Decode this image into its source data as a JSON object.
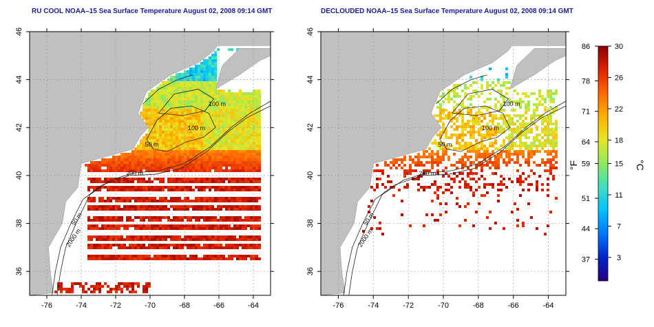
{
  "chart_data": [
    {
      "type": "heatmap",
      "title": "RU COOL NOAA–15 Sea Surface Temperature August 02, 2008 09:14 GMT",
      "xlabel": "",
      "ylabel": "",
      "xlim": [
        -77,
        -63
      ],
      "ylim": [
        35,
        46
      ],
      "x_ticks": [
        -76,
        -74,
        -72,
        -70,
        -68,
        -66,
        -64
      ],
      "y_ticks": [
        36,
        38,
        40,
        42,
        44,
        46
      ],
      "x_tick_labels": [
        "-76",
        "-74",
        "-72",
        "-70",
        "-68",
        "-66",
        "-64"
      ],
      "y_tick_labels": [
        "36",
        "38",
        "40",
        "42",
        "44",
        "46"
      ],
      "grid": true,
      "contour_labels": [
        "100 m",
        "100 m",
        "50 m",
        "200 m",
        "50 m",
        "2000 m"
      ],
      "land_color": "#c0c0c0",
      "note_colors": {
        "warm": "#cc1a0d",
        "mid": "#f0d61e",
        "cool": "#2ec8e0"
      }
    },
    {
      "type": "heatmap",
      "title": "DECLOUDED NOAA–15 Sea Surface Temperature August 02, 2008 09:14 GMT",
      "xlabel": "",
      "ylabel": "",
      "xlim": [
        -77,
        -63
      ],
      "ylim": [
        35,
        46
      ],
      "x_ticks": [
        -76,
        -74,
        -72,
        -70,
        -68,
        -66,
        -64
      ],
      "y_ticks": [
        36,
        38,
        40,
        42,
        44,
        46
      ],
      "x_tick_labels": [
        "-76",
        "-74",
        "-72",
        "-70",
        "-68",
        "-66",
        "-64"
      ],
      "y_tick_labels": [
        "36",
        "38",
        "40",
        "42",
        "44",
        "46"
      ],
      "grid": true,
      "contour_labels": [
        "100 m",
        "100 m",
        "50 m",
        "200 m",
        "50 m",
        "2000 m"
      ],
      "land_color": "#c0c0c0"
    }
  ],
  "colorbar": {
    "left_unit": "°F",
    "right_unit": "°C",
    "min_c": 0,
    "max_c": 30,
    "fahrenheit_ticks": [
      86,
      78,
      71,
      64,
      59,
      51,
      44,
      37
    ],
    "celsius_ticks": [
      30,
      26,
      22,
      18,
      15,
      11,
      7,
      3
    ],
    "fahrenheit_labels": [
      "86",
      "78",
      "71",
      "64",
      "59",
      "51",
      "44",
      "37"
    ],
    "celsius_labels": [
      "30",
      "26",
      "22",
      "18",
      "15",
      "11",
      "7",
      "3"
    ],
    "stops": [
      "#2a0080",
      "#0022cc",
      "#0077ff",
      "#00c0ff",
      "#3fe0c0",
      "#8ee860",
      "#e6e626",
      "#ffb000",
      "#ff6a00",
      "#e02000",
      "#8a0000"
    ]
  }
}
